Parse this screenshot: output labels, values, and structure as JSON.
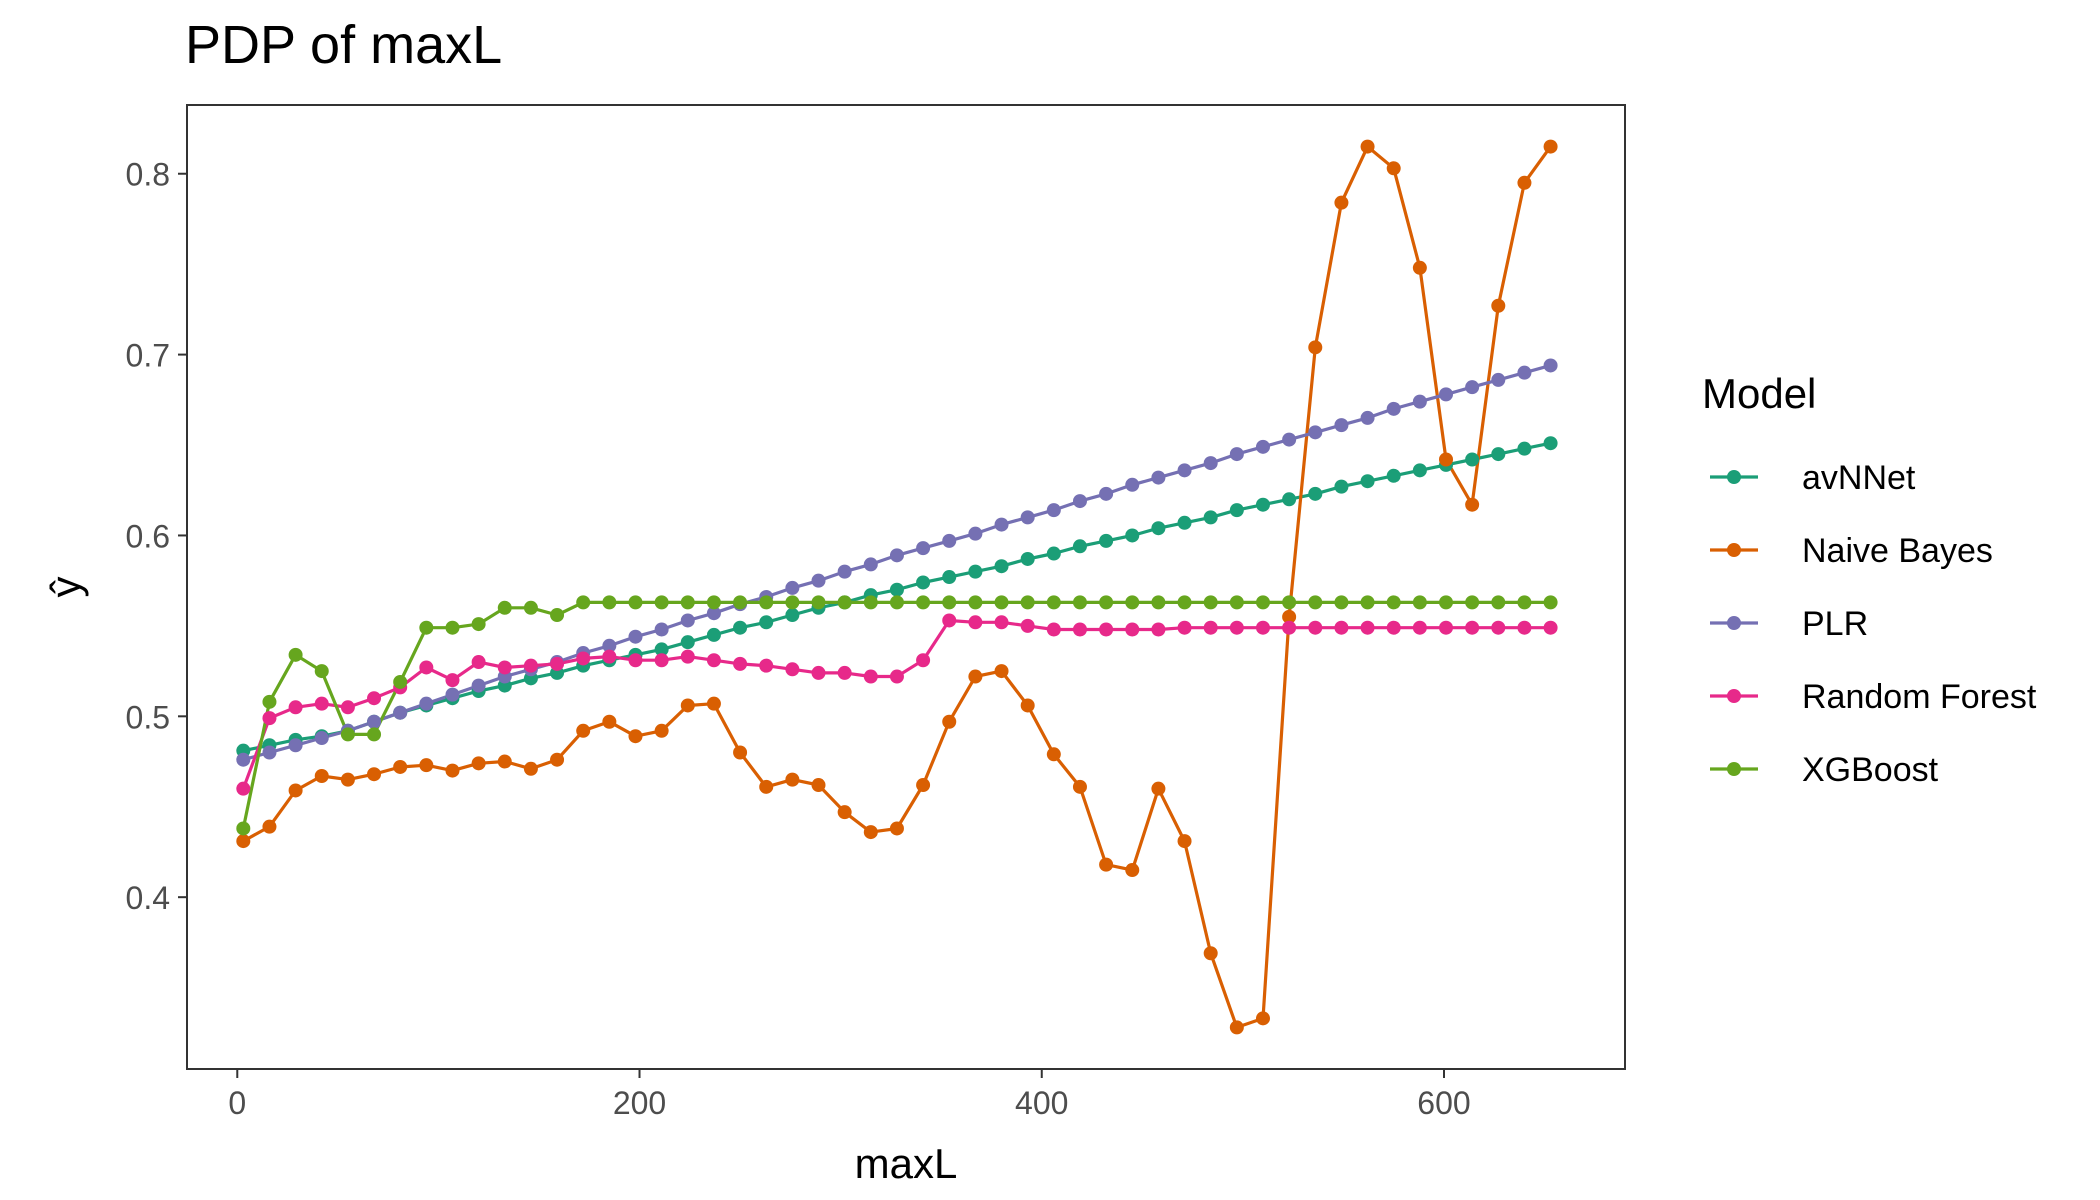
{
  "chart_data": {
    "type": "line",
    "title": "PDP of maxL",
    "xlabel": "maxL",
    "ylabel": "ŷ",
    "xlim": [
      -25,
      690
    ],
    "ylim": [
      0.305,
      0.838
    ],
    "x_ticks": [
      0,
      200,
      400,
      600
    ],
    "y_ticks": [
      0.4,
      0.5,
      0.6,
      0.7,
      0.8
    ],
    "x_tick_labels": [
      "0",
      "200",
      "400",
      "600"
    ],
    "y_tick_labels": [
      "0.4",
      "0.5",
      "0.6",
      "0.7",
      "0.8"
    ],
    "grid": false,
    "legend_position": "right",
    "legend_title": "Model",
    "x": [
      3,
      16,
      29,
      42,
      55,
      68,
      81,
      94,
      107,
      120,
      133,
      146,
      159,
      172,
      185,
      198,
      211,
      224,
      237,
      250,
      263,
      276,
      289,
      302,
      315,
      328,
      341,
      354,
      367,
      380,
      393,
      406,
      419,
      432,
      445,
      458,
      471,
      484,
      497,
      510,
      523,
      536,
      549,
      562,
      575,
      588,
      601,
      614,
      627,
      640,
      653
    ],
    "series": [
      {
        "name": "avNNet",
        "color": "#1B9E77",
        "values": [
          0.481,
          0.484,
          0.487,
          0.489,
          0.492,
          0.497,
          0.502,
          0.506,
          0.51,
          0.514,
          0.517,
          0.521,
          0.524,
          0.528,
          0.531,
          0.534,
          0.537,
          0.541,
          0.545,
          0.549,
          0.552,
          0.556,
          0.56,
          0.563,
          0.567,
          0.57,
          0.574,
          0.577,
          0.58,
          0.583,
          0.587,
          0.59,
          0.594,
          0.597,
          0.6,
          0.604,
          0.607,
          0.61,
          0.614,
          0.617,
          0.62,
          0.623,
          0.627,
          0.63,
          0.633,
          0.636,
          0.639,
          0.642,
          0.645,
          0.648,
          0.651
        ]
      },
      {
        "name": "Naive Bayes",
        "color": "#D95F02",
        "values": [
          0.431,
          0.439,
          0.459,
          0.467,
          0.465,
          0.468,
          0.472,
          0.473,
          0.47,
          0.474,
          0.475,
          0.471,
          0.476,
          0.492,
          0.497,
          0.489,
          0.492,
          0.506,
          0.507,
          0.48,
          0.461,
          0.465,
          0.462,
          0.447,
          0.436,
          0.438,
          0.462,
          0.497,
          0.522,
          0.525,
          0.506,
          0.479,
          0.461,
          0.418,
          0.415,
          0.46,
          0.431,
          0.369,
          0.328,
          0.333,
          0.555,
          0.704,
          0.784,
          0.815,
          0.803,
          0.748,
          0.642,
          0.617,
          0.727,
          0.795,
          0.815
        ]
      },
      {
        "name": "PLR",
        "color": "#7570B3",
        "values": [
          0.476,
          0.48,
          0.484,
          0.488,
          0.492,
          0.497,
          0.502,
          0.507,
          0.512,
          0.517,
          0.522,
          0.526,
          0.53,
          0.535,
          0.539,
          0.544,
          0.548,
          0.553,
          0.557,
          0.562,
          0.566,
          0.571,
          0.575,
          0.58,
          0.584,
          0.589,
          0.593,
          0.597,
          0.601,
          0.606,
          0.61,
          0.614,
          0.619,
          0.623,
          0.628,
          0.632,
          0.636,
          0.64,
          0.645,
          0.649,
          0.653,
          0.657,
          0.661,
          0.665,
          0.67,
          0.674,
          0.678,
          0.682,
          0.686,
          0.69,
          0.694
        ]
      },
      {
        "name": "Random Forest",
        "color": "#E7298A",
        "values": [
          0.46,
          0.499,
          0.505,
          0.507,
          0.505,
          0.51,
          0.516,
          0.527,
          0.52,
          0.53,
          0.527,
          0.528,
          0.529,
          0.532,
          0.533,
          0.531,
          0.531,
          0.533,
          0.531,
          0.529,
          0.528,
          0.526,
          0.524,
          0.524,
          0.522,
          0.522,
          0.531,
          0.553,
          0.552,
          0.552,
          0.55,
          0.548,
          0.548,
          0.548,
          0.548,
          0.548,
          0.549,
          0.549,
          0.549,
          0.549,
          0.549,
          0.549,
          0.549,
          0.549,
          0.549,
          0.549,
          0.549,
          0.549,
          0.549,
          0.549,
          0.549
        ]
      },
      {
        "name": "XGBoost",
        "color": "#66A61E",
        "values": [
          0.438,
          0.508,
          0.534,
          0.525,
          0.49,
          0.49,
          0.519,
          0.549,
          0.549,
          0.551,
          0.56,
          0.56,
          0.556,
          0.563,
          0.563,
          0.563,
          0.563,
          0.563,
          0.563,
          0.563,
          0.563,
          0.563,
          0.563,
          0.563,
          0.563,
          0.563,
          0.563,
          0.563,
          0.563,
          0.563,
          0.563,
          0.563,
          0.563,
          0.563,
          0.563,
          0.563,
          0.563,
          0.563,
          0.563,
          0.563,
          0.563,
          0.563,
          0.563,
          0.563,
          0.563,
          0.563,
          0.563,
          0.563,
          0.563,
          0.563,
          0.563
        ]
      }
    ]
  }
}
